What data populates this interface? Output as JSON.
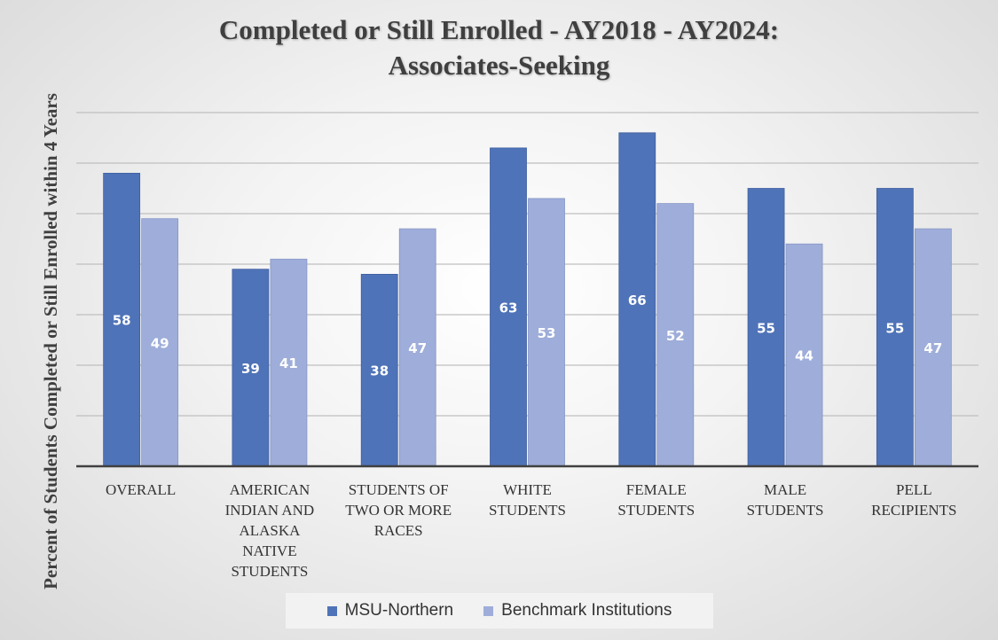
{
  "chart_data": {
    "type": "bar",
    "title_line1": "Completed or Still Enrolled - AY2018 - AY2024:",
    "title_line2": "Associates-Seeking",
    "ylabel": "Percent of  Students Completed or Still Enrolled within 4 Years",
    "xlabel": "",
    "ylim": [
      0,
      70
    ],
    "grid": true,
    "legend_position": "bottom",
    "categories": [
      "OVERALL",
      "AMERICAN INDIAN AND ALASKA NATIVE STUDENTS",
      "STUDENTS OF TWO OR MORE RACES",
      "WHITE STUDENTS",
      "FEMALE STUDENTS",
      "MALE STUDENTS",
      "PELL RECIPIENTS"
    ],
    "series": [
      {
        "name": "MSU-Northern",
        "color": "#4f73b8",
        "values": [
          58,
          39,
          38,
          63,
          66,
          55,
          55
        ]
      },
      {
        "name": "Benchmark Institutions",
        "color": "#9eadd9",
        "values": [
          49,
          41,
          47,
          53,
          52,
          44,
          47
        ]
      }
    ]
  }
}
